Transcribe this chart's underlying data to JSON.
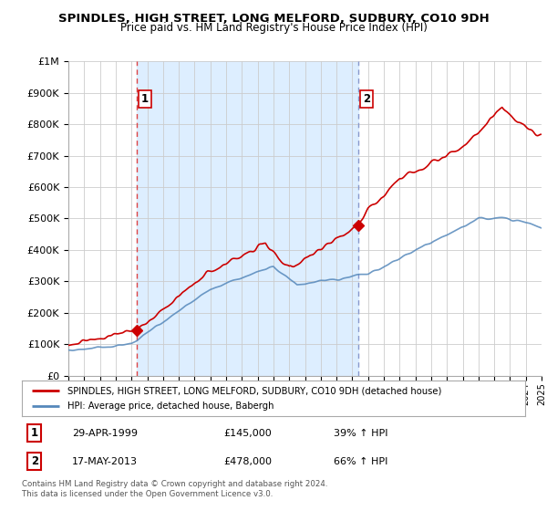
{
  "title": "SPINDLES, HIGH STREET, LONG MELFORD, SUDBURY, CO10 9DH",
  "subtitle": "Price paid vs. HM Land Registry's House Price Index (HPI)",
  "legend_line1": "SPINDLES, HIGH STREET, LONG MELFORD, SUDBURY, CO10 9DH (detached house)",
  "legend_line2": "HPI: Average price, detached house, Babergh",
  "sale1_label": "1",
  "sale1_date": "29-APR-1999",
  "sale1_price": "£145,000",
  "sale1_hpi": "39% ↑ HPI",
  "sale1_year": 1999.33,
  "sale1_value": 145000,
  "sale2_label": "2",
  "sale2_date": "17-MAY-2013",
  "sale2_price": "£478,000",
  "sale2_hpi": "66% ↑ HPI",
  "sale2_year": 2013.38,
  "sale2_value": 478000,
  "red_color": "#cc0000",
  "blue_color": "#5588bb",
  "vline1_color": "#dd4444",
  "vline2_color": "#8899cc",
  "shade_color": "#ddeeff",
  "background_color": "#ffffff",
  "grid_color": "#cccccc",
  "ylim_max": 1000000,
  "ylim_min": 0,
  "xlim_min": 1995,
  "xlim_max": 2025,
  "footnote": "Contains HM Land Registry data © Crown copyright and database right 2024.\nThis data is licensed under the Open Government Licence v3.0."
}
